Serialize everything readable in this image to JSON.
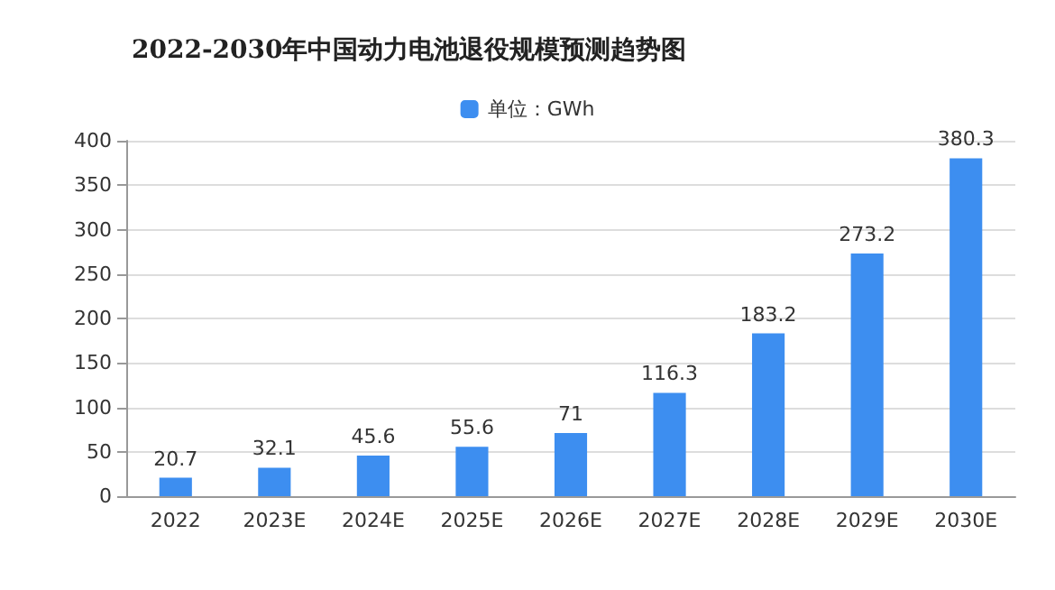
{
  "chart_data": {
    "type": "bar",
    "title": "2022-2030年中国动力电池退役规模预测趋势图",
    "categories": [
      "2022",
      "2023E",
      "2024E",
      "2025E",
      "2026E",
      "2027E",
      "2028E",
      "2029E",
      "2030E"
    ],
    "series": [
      {
        "name": "单位：GWh",
        "color": "#3d8ef0",
        "values": [
          20.7,
          32.1,
          45.6,
          55.6,
          71,
          116.3,
          183.2,
          273.2,
          380.3
        ]
      }
    ],
    "ylim": [
      0,
      400
    ],
    "yticks": [
      0,
      50,
      100,
      150,
      200,
      250,
      300,
      350,
      400
    ],
    "grid": "y",
    "legend": "top",
    "data_labels": true
  }
}
